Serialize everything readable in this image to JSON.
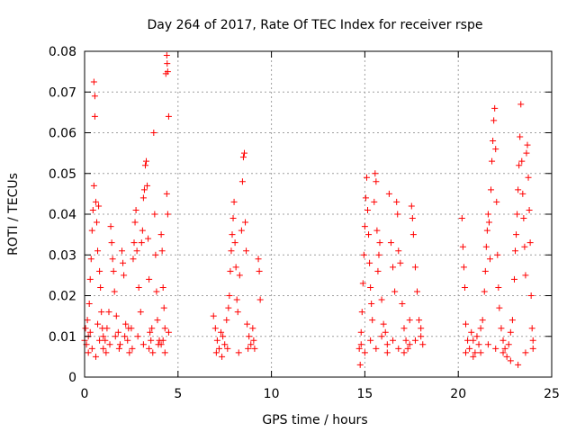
{
  "chart_data": {
    "type": "scatter",
    "title": "Day 264 of 2017, Rate Of TEC Index for receiver rspe",
    "xlabel": "GPS time / hours",
    "ylabel": "ROTI / TECUs",
    "xlim": [
      0,
      25
    ],
    "ylim": [
      0,
      0.08
    ],
    "xticks": [
      0,
      5,
      10,
      15,
      20,
      25
    ],
    "xtick_labels": [
      "0",
      "5",
      "10",
      "15",
      "20",
      "25"
    ],
    "yticks": [
      0,
      0.01,
      0.02,
      0.03,
      0.04,
      0.05,
      0.06,
      0.07,
      0.08
    ],
    "ytick_labels": [
      "0",
      "0.01",
      "0.02",
      "0.03",
      "0.04",
      "0.05",
      "0.06",
      "0.07",
      "0.08"
    ],
    "grid": true,
    "marker": "+",
    "marker_color": "#ff0000",
    "series": [
      {
        "name": "ROTI",
        "points": [
          [
            0.0,
            0.009
          ],
          [
            0.05,
            0.012
          ],
          [
            0.1,
            0.008
          ],
          [
            0.15,
            0.014
          ],
          [
            0.2,
            0.01
          ],
          [
            0.25,
            0.018
          ],
          [
            0.3,
            0.024
          ],
          [
            0.35,
            0.029
          ],
          [
            0.4,
            0.036
          ],
          [
            0.45,
            0.041
          ],
          [
            0.5,
            0.047
          ],
          [
            0.5,
            0.0725
          ],
          [
            0.55,
            0.069
          ],
          [
            0.55,
            0.064
          ],
          [
            0.6,
            0.043
          ],
          [
            0.65,
            0.038
          ],
          [
            0.7,
            0.031
          ],
          [
            0.75,
            0.042
          ],
          [
            0.8,
            0.026
          ],
          [
            0.85,
            0.022
          ],
          [
            0.9,
            0.016
          ],
          [
            0.95,
            0.012
          ],
          [
            1.0,
            0.01
          ],
          [
            0.2,
            0.006
          ],
          [
            0.4,
            0.007
          ],
          [
            0.6,
            0.005
          ],
          [
            0.8,
            0.009
          ],
          [
            1.0,
            0.007
          ],
          [
            0.3,
            0.011
          ],
          [
            0.7,
            0.013
          ],
          [
            1.1,
            0.009
          ],
          [
            1.2,
            0.012
          ],
          [
            1.3,
            0.016
          ],
          [
            1.4,
            0.037
          ],
          [
            1.45,
            0.033
          ],
          [
            1.5,
            0.029
          ],
          [
            1.55,
            0.026
          ],
          [
            1.6,
            0.021
          ],
          [
            1.7,
            0.015
          ],
          [
            1.8,
            0.011
          ],
          [
            1.9,
            0.008
          ],
          [
            2.0,
            0.031
          ],
          [
            2.05,
            0.028
          ],
          [
            2.1,
            0.025
          ],
          [
            2.2,
            0.013
          ],
          [
            2.3,
            0.009
          ],
          [
            2.4,
            0.006
          ],
          [
            1.15,
            0.006
          ],
          [
            1.35,
            0.008
          ],
          [
            1.65,
            0.01
          ],
          [
            1.85,
            0.007
          ],
          [
            2.15,
            0.01
          ],
          [
            2.35,
            0.012
          ],
          [
            2.5,
            0.012
          ],
          [
            2.6,
            0.029
          ],
          [
            2.65,
            0.033
          ],
          [
            2.7,
            0.038
          ],
          [
            2.75,
            0.041
          ],
          [
            2.8,
            0.031
          ],
          [
            2.9,
            0.022
          ],
          [
            3.0,
            0.016
          ],
          [
            3.05,
            0.033
          ],
          [
            3.1,
            0.036
          ],
          [
            3.15,
            0.044
          ],
          [
            3.2,
            0.046
          ],
          [
            3.25,
            0.052
          ],
          [
            3.3,
            0.053
          ],
          [
            3.35,
            0.047
          ],
          [
            3.4,
            0.034
          ],
          [
            3.45,
            0.024
          ],
          [
            3.5,
            0.011
          ],
          [
            3.55,
            0.009
          ],
          [
            3.6,
            0.012
          ],
          [
            3.7,
            0.06
          ],
          [
            3.75,
            0.04
          ],
          [
            3.8,
            0.03
          ],
          [
            3.85,
            0.021
          ],
          [
            3.9,
            0.014
          ],
          [
            4.0,
            0.009
          ],
          [
            2.55,
            0.007
          ],
          [
            2.85,
            0.01
          ],
          [
            3.15,
            0.008
          ],
          [
            3.45,
            0.007
          ],
          [
            3.65,
            0.006
          ],
          [
            3.95,
            0.008
          ],
          [
            4.1,
            0.035
          ],
          [
            4.15,
            0.031
          ],
          [
            4.2,
            0.022
          ],
          [
            4.25,
            0.017
          ],
          [
            4.3,
            0.012
          ],
          [
            4.35,
            0.0745
          ],
          [
            4.4,
            0.079
          ],
          [
            4.42,
            0.077
          ],
          [
            4.45,
            0.075
          ],
          [
            4.5,
            0.064
          ],
          [
            4.4,
            0.045
          ],
          [
            4.45,
            0.04
          ],
          [
            4.5,
            0.011
          ],
          [
            4.1,
            0.008
          ],
          [
            4.3,
            0.006
          ],
          [
            4.2,
            0.009
          ],
          [
            6.9,
            0.015
          ],
          [
            7.0,
            0.012
          ],
          [
            7.1,
            0.009
          ],
          [
            7.2,
            0.007
          ],
          [
            7.3,
            0.011
          ],
          [
            7.4,
            0.01
          ],
          [
            7.5,
            0.008
          ],
          [
            7.6,
            0.014
          ],
          [
            7.7,
            0.017
          ],
          [
            7.75,
            0.02
          ],
          [
            7.8,
            0.026
          ],
          [
            7.85,
            0.031
          ],
          [
            7.9,
            0.035
          ],
          [
            7.95,
            0.039
          ],
          [
            8.0,
            0.043
          ],
          [
            8.05,
            0.033
          ],
          [
            8.1,
            0.027
          ],
          [
            8.15,
            0.019
          ],
          [
            8.2,
            0.016
          ],
          [
            8.3,
            0.025
          ],
          [
            8.4,
            0.036
          ],
          [
            8.45,
            0.048
          ],
          [
            8.5,
            0.054
          ],
          [
            8.55,
            0.055
          ],
          [
            8.6,
            0.038
          ],
          [
            8.65,
            0.031
          ],
          [
            8.7,
            0.013
          ],
          [
            8.8,
            0.01
          ],
          [
            8.9,
            0.008
          ],
          [
            9.0,
            0.012
          ],
          [
            9.1,
            0.007
          ],
          [
            7.05,
            0.006
          ],
          [
            7.35,
            0.005
          ],
          [
            7.65,
            0.007
          ],
          [
            8.25,
            0.006
          ],
          [
            8.75,
            0.007
          ],
          [
            9.05,
            0.009
          ],
          [
            9.3,
            0.029
          ],
          [
            9.35,
            0.026
          ],
          [
            9.4,
            0.019
          ],
          [
            14.7,
            0.007
          ],
          [
            14.75,
            0.003
          ],
          [
            14.8,
            0.011
          ],
          [
            14.85,
            0.016
          ],
          [
            14.9,
            0.023
          ],
          [
            14.95,
            0.03
          ],
          [
            15.0,
            0.037
          ],
          [
            15.05,
            0.044
          ],
          [
            15.1,
            0.049
          ],
          [
            15.15,
            0.041
          ],
          [
            15.2,
            0.035
          ],
          [
            15.25,
            0.028
          ],
          [
            15.3,
            0.022
          ],
          [
            15.35,
            0.018
          ],
          [
            15.4,
            0.014
          ],
          [
            15.5,
            0.043
          ],
          [
            15.55,
            0.05
          ],
          [
            15.6,
            0.048
          ],
          [
            15.65,
            0.036
          ],
          [
            15.7,
            0.026
          ],
          [
            15.75,
            0.03
          ],
          [
            15.8,
            0.033
          ],
          [
            15.9,
            0.019
          ],
          [
            16.0,
            0.013
          ],
          [
            16.1,
            0.011
          ],
          [
            16.2,
            0.008
          ],
          [
            16.3,
            0.045
          ],
          [
            16.4,
            0.033
          ],
          [
            16.5,
            0.027
          ],
          [
            16.6,
            0.021
          ],
          [
            16.7,
            0.043
          ],
          [
            16.75,
            0.04
          ],
          [
            16.8,
            0.031
          ],
          [
            16.9,
            0.028
          ],
          [
            17.0,
            0.018
          ],
          [
            17.1,
            0.012
          ],
          [
            17.2,
            0.009
          ],
          [
            17.3,
            0.007
          ],
          [
            17.4,
            0.014
          ],
          [
            17.5,
            0.042
          ],
          [
            17.55,
            0.039
          ],
          [
            17.6,
            0.035
          ],
          [
            17.7,
            0.027
          ],
          [
            17.8,
            0.021
          ],
          [
            17.9,
            0.014
          ],
          [
            18.0,
            0.01
          ],
          [
            18.1,
            0.008
          ],
          [
            14.8,
            0.008
          ],
          [
            15.0,
            0.006
          ],
          [
            15.3,
            0.009
          ],
          [
            15.6,
            0.007
          ],
          [
            15.9,
            0.01
          ],
          [
            16.2,
            0.006
          ],
          [
            16.5,
            0.009
          ],
          [
            16.8,
            0.007
          ],
          [
            17.1,
            0.006
          ],
          [
            17.4,
            0.008
          ],
          [
            17.7,
            0.009
          ],
          [
            18.0,
            0.012
          ],
          [
            20.2,
            0.039
          ],
          [
            20.25,
            0.032
          ],
          [
            20.3,
            0.027
          ],
          [
            20.35,
            0.022
          ],
          [
            20.4,
            0.013
          ],
          [
            20.5,
            0.009
          ],
          [
            20.6,
            0.007
          ],
          [
            20.7,
            0.011
          ],
          [
            20.8,
            0.009
          ],
          [
            20.9,
            0.006
          ],
          [
            21.0,
            0.01
          ],
          [
            21.1,
            0.008
          ],
          [
            21.2,
            0.012
          ],
          [
            21.3,
            0.014
          ],
          [
            21.4,
            0.021
          ],
          [
            21.45,
            0.026
          ],
          [
            21.5,
            0.032
          ],
          [
            21.55,
            0.036
          ],
          [
            21.6,
            0.04
          ],
          [
            21.65,
            0.038
          ],
          [
            21.7,
            0.029
          ],
          [
            21.75,
            0.046
          ],
          [
            21.8,
            0.053
          ],
          [
            21.85,
            0.058
          ],
          [
            21.9,
            0.063
          ],
          [
            21.95,
            0.066
          ],
          [
            22.0,
            0.056
          ],
          [
            22.05,
            0.043
          ],
          [
            22.1,
            0.03
          ],
          [
            22.15,
            0.022
          ],
          [
            22.2,
            0.017
          ],
          [
            22.3,
            0.012
          ],
          [
            22.4,
            0.009
          ],
          [
            22.5,
            0.007
          ],
          [
            22.6,
            0.005
          ],
          [
            22.7,
            0.008
          ],
          [
            22.8,
            0.011
          ],
          [
            22.9,
            0.014
          ],
          [
            23.0,
            0.024
          ],
          [
            23.05,
            0.031
          ],
          [
            23.1,
            0.035
          ],
          [
            23.15,
            0.04
          ],
          [
            23.2,
            0.046
          ],
          [
            23.25,
            0.052
          ],
          [
            23.3,
            0.059
          ],
          [
            23.35,
            0.067
          ],
          [
            23.4,
            0.053
          ],
          [
            23.45,
            0.045
          ],
          [
            23.5,
            0.039
          ],
          [
            23.55,
            0.032
          ],
          [
            23.6,
            0.025
          ],
          [
            23.65,
            0.055
          ],
          [
            23.7,
            0.057
          ],
          [
            23.75,
            0.049
          ],
          [
            23.8,
            0.041
          ],
          [
            23.85,
            0.033
          ],
          [
            23.9,
            0.02
          ],
          [
            23.95,
            0.012
          ],
          [
            24.0,
            0.009
          ],
          [
            20.4,
            0.006
          ],
          [
            20.8,
            0.005
          ],
          [
            21.2,
            0.006
          ],
          [
            21.6,
            0.008
          ],
          [
            22.0,
            0.007
          ],
          [
            22.4,
            0.006
          ],
          [
            22.8,
            0.004
          ],
          [
            23.2,
            0.003
          ],
          [
            23.6,
            0.006
          ],
          [
            24.0,
            0.007
          ]
        ]
      }
    ]
  }
}
